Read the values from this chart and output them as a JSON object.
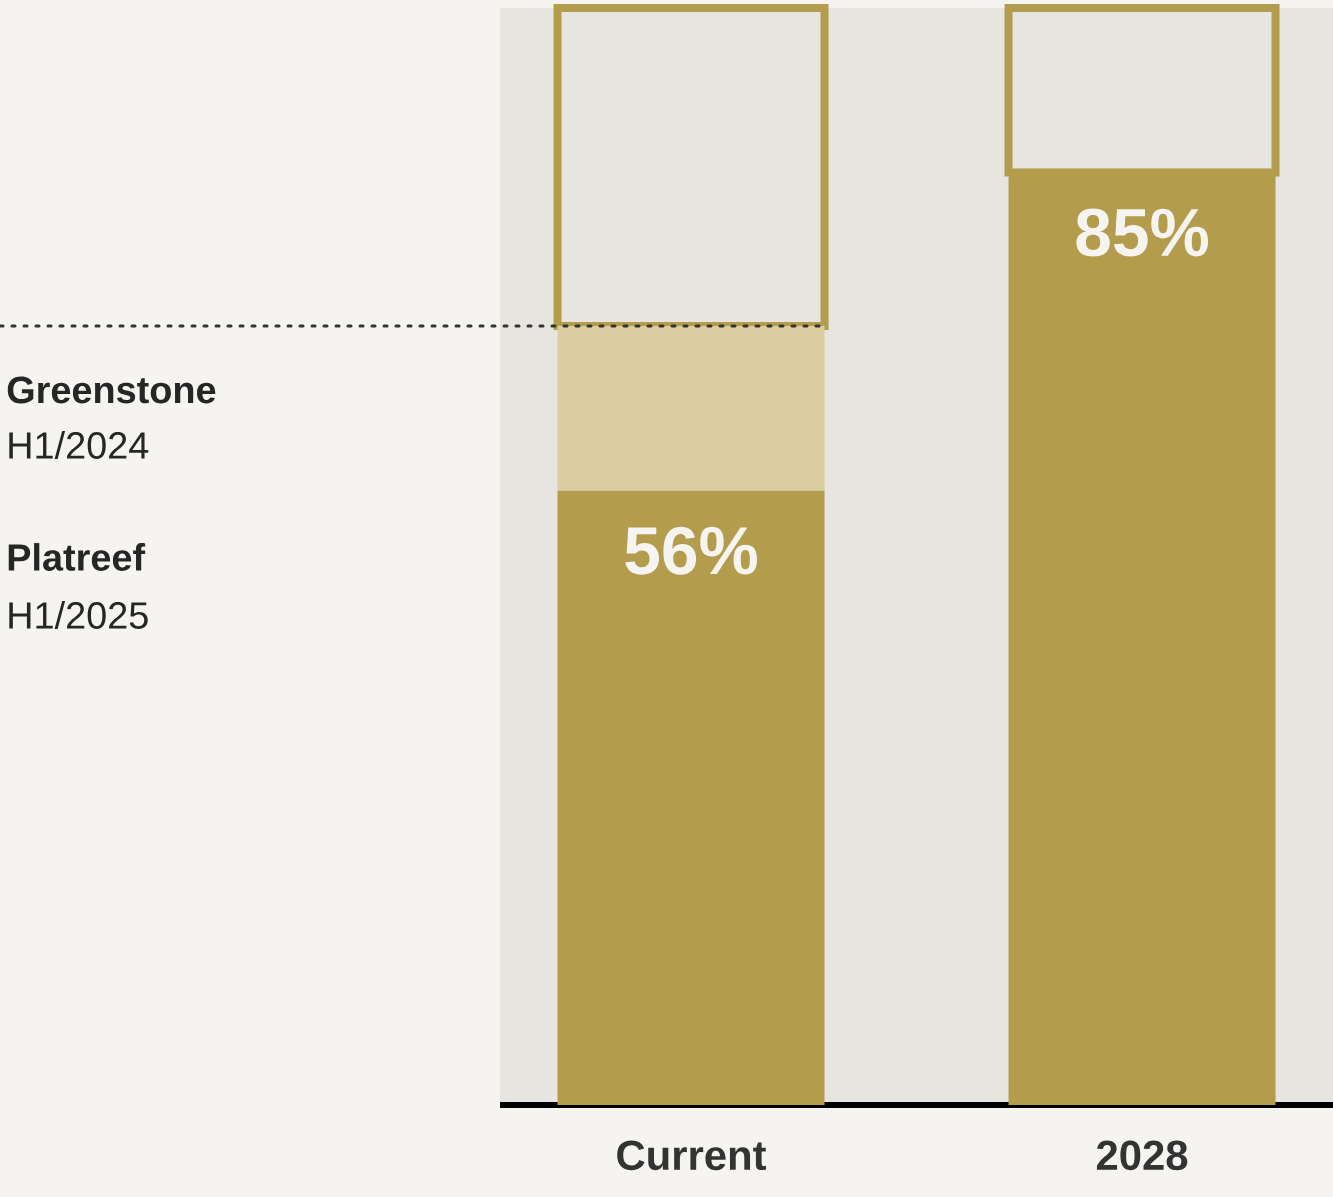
{
  "chart_data": {
    "type": "bar",
    "stacked": true,
    "ylim": [
      0,
      100
    ],
    "categories": [
      "Current",
      "2028"
    ],
    "series": [
      {
        "color": "#b39c4b",
        "values": [
          56,
          85
        ],
        "value_labels": [
          "56%",
          "85%"
        ]
      },
      {
        "color": "#dacd9f",
        "values": [
          15,
          0
        ]
      },
      {
        "color": "#e7e5e0",
        "values": [
          29,
          15
        ]
      }
    ],
    "ref_lines": [
      {
        "axis": "y",
        "value": 71,
        "line_style": "dotted",
        "color": "#333333"
      }
    ],
    "annotations": [
      "Greenstone",
      "H1/2024",
      "Platreef",
      "H1/2025"
    ]
  }
}
